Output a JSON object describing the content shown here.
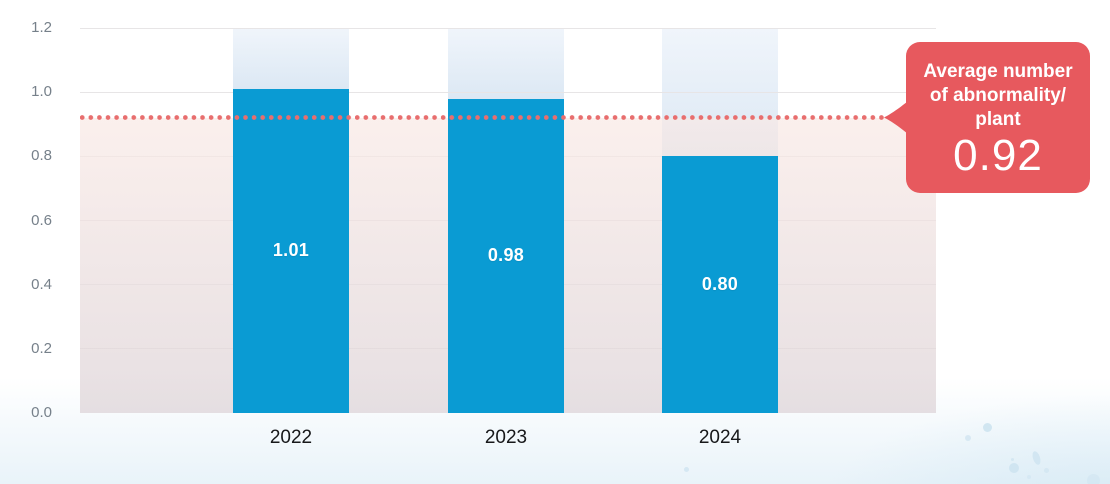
{
  "chart_data": {
    "type": "bar",
    "title": "",
    "xlabel": "",
    "ylabel": "",
    "categories": [
      "2022",
      "2023",
      "2024"
    ],
    "values": [
      1.01,
      0.98,
      0.8
    ],
    "value_labels": [
      "1.01",
      "0.98",
      "0.80"
    ],
    "ylim": [
      0.0,
      1.2
    ],
    "ytick_labels": [
      "1.2",
      "1.0",
      "0.8",
      "0.6",
      "0.4",
      "0.2",
      "0.0"
    ],
    "ytick_values": [
      1.2,
      1.0,
      0.8,
      0.6,
      0.4,
      0.2,
      0.0
    ],
    "grid": true,
    "legend": false,
    "average_line": {
      "value": 0.92,
      "label": "Average number of abnormality/plant",
      "display": "0.92"
    }
  },
  "callout": {
    "lines": [
      "Average number",
      "of abnormality/",
      "plant"
    ],
    "value": "0.92"
  },
  "colors": {
    "bar": "#0a9bd3",
    "callout_red": "#e7595e",
    "avg_dot_red": "#e86e6e",
    "grid": "#e7e5e6",
    "ytick_text": "#76808a",
    "xtick_text": "#17181a",
    "column_top": "#f0f5fb",
    "column_bottom": "#dce8f4",
    "deco_blue": "#cde3f0"
  }
}
